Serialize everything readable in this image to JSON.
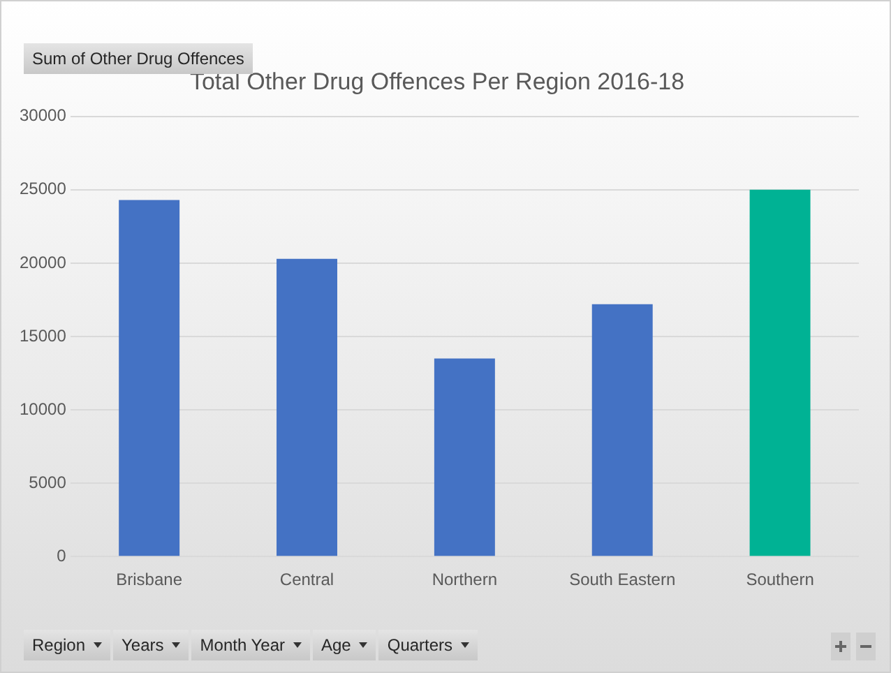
{
  "chart_data": {
    "type": "bar",
    "title": "Total Other Drug Offences Per Region 2016-18",
    "categories": [
      "Brisbane",
      "Central",
      "Northern",
      "South Eastern",
      "Southern"
    ],
    "values": [
      24300,
      20300,
      13500,
      17200,
      25000
    ],
    "colors": [
      "#4472c4",
      "#4472c4",
      "#4472c4",
      "#4472c4",
      "#00b294"
    ],
    "ylim": [
      0,
      30000
    ],
    "yticks": [
      0,
      5000,
      10000,
      15000,
      20000,
      25000,
      30000
    ],
    "grid": "y",
    "legend": false,
    "annotations": [
      "Sum of Other Drug Offences",
      "Region",
      "Years",
      "Month Year",
      "Age",
      "Quarters"
    ]
  }
}
